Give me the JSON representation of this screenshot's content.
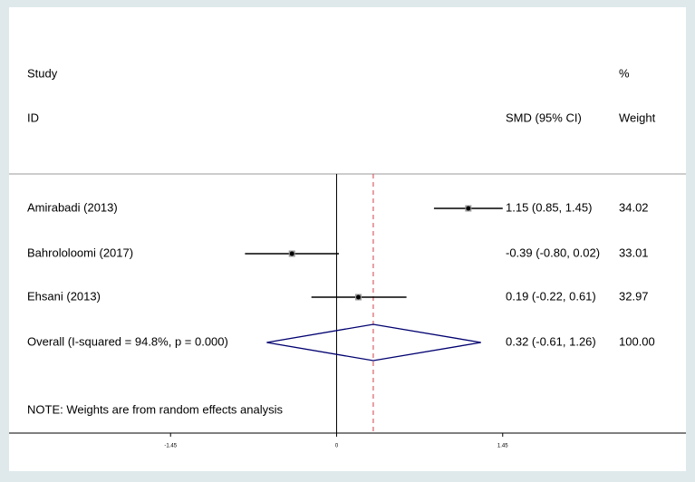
{
  "chart_data": {
    "type": "forest",
    "headers": {
      "study": [
        "Study",
        "ID"
      ],
      "effect": "SMD (95% CI)",
      "weight": [
        "%",
        "Weight"
      ]
    },
    "studies": [
      {
        "name": "Amirabadi (2013)",
        "smd": 1.15,
        "ci": [
          0.85,
          1.45
        ],
        "label": "1.15 (0.85, 1.45)",
        "weight": "34.02"
      },
      {
        "name": "Bahrololoomi (2017)",
        "smd": -0.39,
        "ci": [
          -0.8,
          0.02
        ],
        "label": "-0.39 (-0.80, 0.02)",
        "weight": "33.01"
      },
      {
        "name": "Ehsani (2013)",
        "smd": 0.19,
        "ci": [
          -0.22,
          0.61
        ],
        "label": "0.19 (-0.22, 0.61)",
        "weight": "32.97"
      }
    ],
    "overall": {
      "name": "Overall  (I-squared = 94.8%, p = 0.000)",
      "smd": 0.32,
      "ci": [
        -0.61,
        1.26
      ],
      "label": "0.32 (-0.61, 1.26)",
      "weight": "100.00"
    },
    "note": "NOTE: Weights are from random effects analysis",
    "xlim": [
      -2.86,
      3.05
    ],
    "xticks": [
      -1.45,
      0,
      1.45
    ],
    "colors": {
      "ci": "#000000",
      "point": "#000000",
      "diamond": "#000070",
      "overall_line": "#d0404a"
    }
  }
}
